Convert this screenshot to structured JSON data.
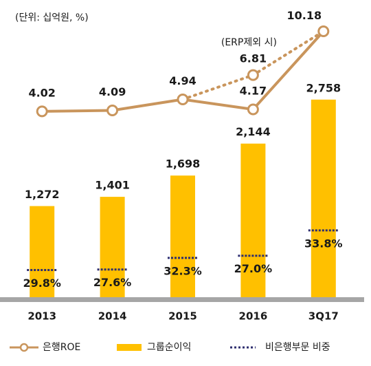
{
  "chart_data": {
    "type": "bar_line",
    "note": "(단위: 십억원, %)",
    "categories": [
      "2013",
      "2014",
      "2015",
      "2016",
      "3Q17"
    ],
    "ylim": [
      0,
      2900
    ],
    "y2lim": [
      2,
      11
    ],
    "series": [
      {
        "name": "그룹순이익",
        "type": "bar",
        "color": "#ffc000",
        "values": [
          1272,
          1401,
          1698,
          2144,
          2758
        ],
        "value_labels": [
          "1,272",
          "1,401",
          "1,698",
          "2,144",
          "2,758"
        ]
      },
      {
        "name": "은행ROE",
        "type": "line",
        "axis": "y2",
        "color": "#c9955c",
        "values": [
          4.02,
          4.09,
          4.94,
          4.17,
          10.18
        ]
      },
      {
        "name": "비은행부문 비중",
        "type": "share",
        "color": "#2e2e6e",
        "values": [
          29.8,
          27.6,
          32.3,
          27.0,
          33.8
        ],
        "value_labels": [
          "29.8%",
          "27.6%",
          "32.3%",
          "27.0%",
          "33.8%"
        ]
      }
    ],
    "erp": {
      "label": "(ERP제외 시)",
      "axis": "y2",
      "values": [
        null,
        null,
        4.94,
        6.81,
        10.18
      ]
    }
  }
}
